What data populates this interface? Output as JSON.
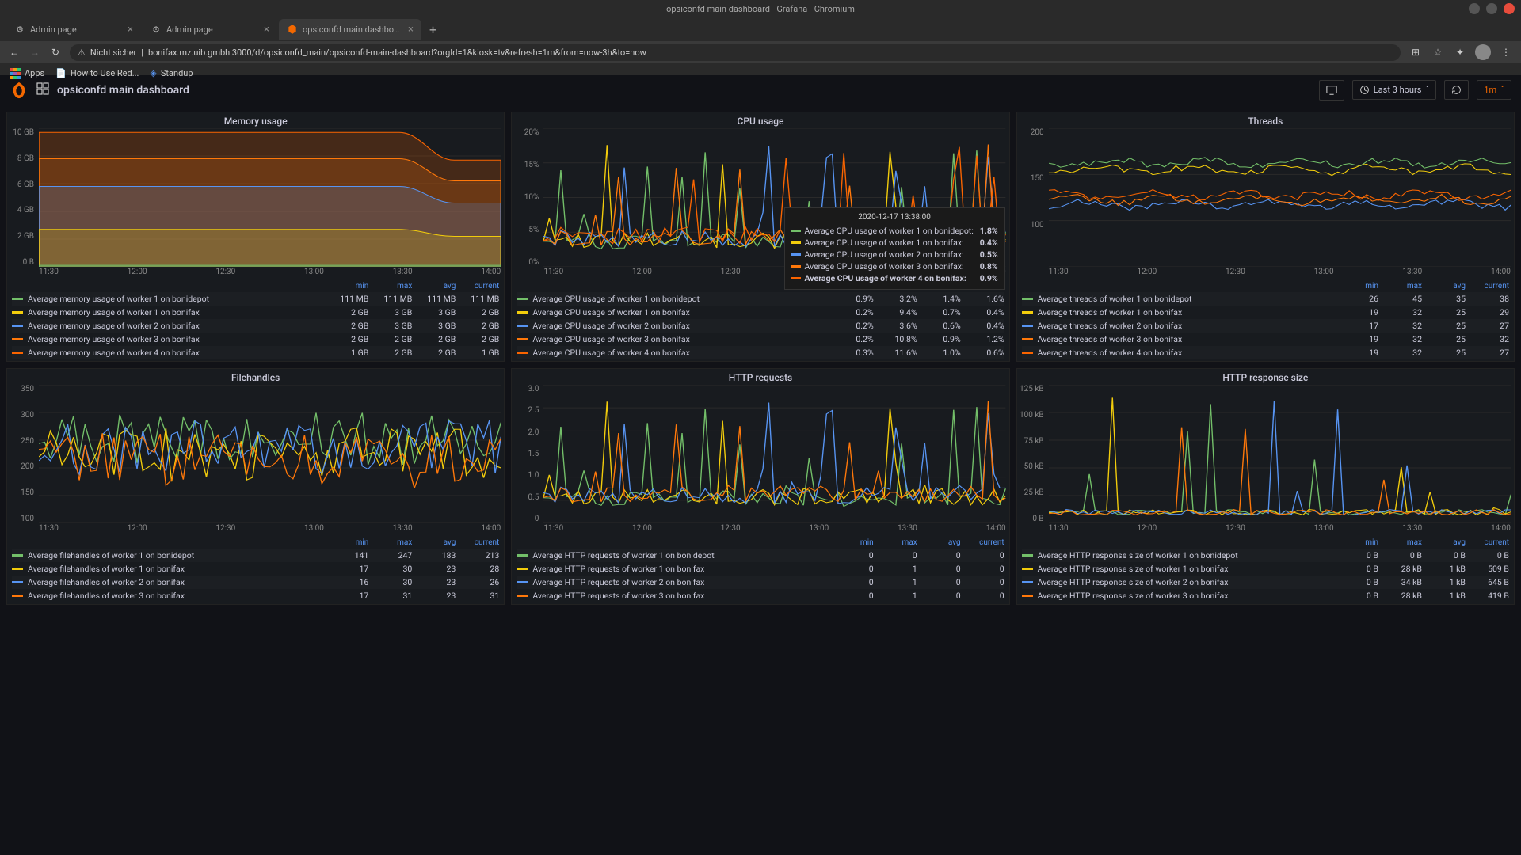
{
  "window": {
    "title": "opsiconfd main dashboard - Grafana - Chromium"
  },
  "browser": {
    "tabs": [
      {
        "label": "Admin page",
        "active": false
      },
      {
        "label": "Admin page",
        "active": false
      },
      {
        "label": "opsiconfd main dashboard",
        "active": true
      }
    ],
    "url_warning": "Nicht sicher",
    "url": "bonifax.mz.uib.gmbh:3000/d/opsiconfd_main/opsiconfd-main-dashboard?orgId=1&kiosk=tv&refresh=1m&from=now-3h&to=now",
    "bookmarks": {
      "apps": "Apps",
      "howto": "How to Use Red...",
      "standup": "Standup"
    }
  },
  "header": {
    "title": "opsiconfd main dashboard",
    "timerange": "Last 3 hours",
    "refresh": "1m"
  },
  "colors": {
    "series": [
      "#73bf69",
      "#f2cc0c",
      "#5794f2",
      "#ff780a",
      "#fa6400"
    ],
    "link": "#5794f2",
    "accent": "#f46800"
  },
  "x_ticks": [
    "11:30",
    "12:00",
    "12:30",
    "13:00",
    "13:30",
    "14:00"
  ],
  "tooltip": {
    "time": "2020-12-17 13:38:00",
    "rows": [
      {
        "label": "Average CPU usage of worker 1 on bonidepot:",
        "val": "1.8%",
        "color": "#73bf69"
      },
      {
        "label": "Average CPU usage of worker 1 on bonifax:",
        "val": "0.4%",
        "color": "#f2cc0c"
      },
      {
        "label": "Average CPU usage of worker 2 on bonifax:",
        "val": "0.5%",
        "color": "#5794f2"
      },
      {
        "label": "Average CPU usage of worker 3 on bonifax:",
        "val": "0.8%",
        "color": "#ff780a"
      },
      {
        "label": "Average CPU usage of worker 4 on bonifax:",
        "val": "0.9%",
        "color": "#fa6400",
        "bold": true
      }
    ]
  },
  "panels": {
    "memory": {
      "title": "Memory usage",
      "y_ticks": [
        "10 GB",
        "8 GB",
        "6 GB",
        "4 GB",
        "2 GB",
        "0 B"
      ],
      "type": "stacked-area",
      "headers": [
        "min",
        "max",
        "avg",
        "current"
      ],
      "rows": [
        {
          "label": "Average memory usage of worker 1 on bonidepot",
          "vals": [
            "111 MB",
            "111 MB",
            "111 MB",
            "111 MB"
          ],
          "color": "#73bf69"
        },
        {
          "label": "Average memory usage of worker 1 on bonifax",
          "vals": [
            "2 GB",
            "3 GB",
            "3 GB",
            "2 GB"
          ],
          "color": "#f2cc0c"
        },
        {
          "label": "Average memory usage of worker 2 on bonifax",
          "vals": [
            "2 GB",
            "3 GB",
            "3 GB",
            "2 GB"
          ],
          "color": "#5794f2"
        },
        {
          "label": "Average memory usage of worker 3 on bonifax",
          "vals": [
            "2 GB",
            "2 GB",
            "2 GB",
            "2 GB"
          ],
          "color": "#ff780a"
        },
        {
          "label": "Average memory usage of worker 4 on bonifax",
          "vals": [
            "1 GB",
            "2 GB",
            "2 GB",
            "1 GB"
          ],
          "color": "#fa6400"
        }
      ]
    },
    "cpu": {
      "title": "CPU usage",
      "y_ticks": [
        "20%",
        "15%",
        "10%",
        "5%",
        "0%"
      ],
      "type": "line-spiky",
      "headers": [
        "min",
        "max",
        "avg",
        "current"
      ],
      "rows": [
        {
          "label": "Average CPU usage of worker 1 on bonidepot",
          "vals": [
            "0.9%",
            "3.2%",
            "1.4%",
            "1.6%"
          ],
          "color": "#73bf69"
        },
        {
          "label": "Average CPU usage of worker 1 on bonifax",
          "vals": [
            "0.2%",
            "9.4%",
            "0.7%",
            "0.4%"
          ],
          "color": "#f2cc0c"
        },
        {
          "label": "Average CPU usage of worker 2 on bonifax",
          "vals": [
            "0.2%",
            "3.6%",
            "0.6%",
            "0.4%"
          ],
          "color": "#5794f2"
        },
        {
          "label": "Average CPU usage of worker 3 on bonifax",
          "vals": [
            "0.2%",
            "10.8%",
            "0.9%",
            "1.2%"
          ],
          "color": "#ff780a"
        },
        {
          "label": "Average CPU usage of worker 4 on bonifax",
          "vals": [
            "0.3%",
            "11.6%",
            "1.0%",
            "0.6%"
          ],
          "color": "#fa6400"
        }
      ]
    },
    "threads": {
      "title": "Threads",
      "y_ticks": [
        "200",
        "150",
        "100",
        ""
      ],
      "type": "line-wavy",
      "headers": [
        "min",
        "max",
        "avg",
        "current"
      ],
      "rows": [
        {
          "label": "Average threads of worker 1 on bonidepot",
          "vals": [
            "26",
            "45",
            "35",
            "38"
          ],
          "color": "#73bf69"
        },
        {
          "label": "Average threads of worker 1 on bonifax",
          "vals": [
            "19",
            "32",
            "25",
            "29"
          ],
          "color": "#f2cc0c"
        },
        {
          "label": "Average threads of worker 2 on bonifax",
          "vals": [
            "17",
            "32",
            "25",
            "27"
          ],
          "color": "#5794f2"
        },
        {
          "label": "Average threads of worker 3 on bonifax",
          "vals": [
            "19",
            "32",
            "25",
            "32"
          ],
          "color": "#ff780a"
        },
        {
          "label": "Average threads of worker 4 on bonifax",
          "vals": [
            "19",
            "32",
            "25",
            "27"
          ],
          "color": "#fa6400"
        }
      ]
    },
    "filehandles": {
      "title": "Filehandles",
      "y_ticks": [
        "350",
        "300",
        "250",
        "200",
        "150",
        "100"
      ],
      "type": "line-noisy",
      "headers": [
        "min",
        "max",
        "avg",
        "current"
      ],
      "rows": [
        {
          "label": "Average filehandles of worker 1 on bonidepot",
          "vals": [
            "141",
            "247",
            "183",
            "213"
          ],
          "color": "#73bf69"
        },
        {
          "label": "Average filehandles of worker 1 on bonifax",
          "vals": [
            "17",
            "30",
            "23",
            "28"
          ],
          "color": "#f2cc0c"
        },
        {
          "label": "Average filehandles of worker 2 on bonifax",
          "vals": [
            "16",
            "30",
            "23",
            "26"
          ],
          "color": "#5794f2"
        },
        {
          "label": "Average filehandles of worker 3 on bonifax",
          "vals": [
            "17",
            "31",
            "23",
            "31"
          ],
          "color": "#ff780a"
        }
      ]
    },
    "http_req": {
      "title": "HTTP requests",
      "y_ticks": [
        "3.0",
        "2.5",
        "2.0",
        "1.5",
        "1.0",
        "0.5",
        "0"
      ],
      "type": "line-spiky",
      "headers": [
        "min",
        "max",
        "avg",
        "current"
      ],
      "rows": [
        {
          "label": "Average HTTP requests of worker 1 on bonidepot",
          "vals": [
            "0",
            "0",
            "0",
            "0"
          ],
          "color": "#73bf69"
        },
        {
          "label": "Average HTTP requests of worker 1 on bonifax",
          "vals": [
            "0",
            "1",
            "0",
            "0"
          ],
          "color": "#f2cc0c"
        },
        {
          "label": "Average HTTP requests of worker 2 on bonifax",
          "vals": [
            "0",
            "1",
            "0",
            "0"
          ],
          "color": "#5794f2"
        },
        {
          "label": "Average HTTP requests of worker 3 on bonifax",
          "vals": [
            "0",
            "1",
            "0",
            "0"
          ],
          "color": "#ff780a"
        }
      ]
    },
    "http_size": {
      "title": "HTTP response size",
      "y_ticks": [
        "125 kB",
        "100 kB",
        "75 kB",
        "50 kB",
        "25 kB",
        "0 B"
      ],
      "type": "line-sparse",
      "headers": [
        "min",
        "max",
        "avg",
        "current"
      ],
      "rows": [
        {
          "label": "Average HTTP response size of worker 1 on bonidepot",
          "vals": [
            "0 B",
            "0 B",
            "0 B",
            "0 B"
          ],
          "color": "#73bf69"
        },
        {
          "label": "Average HTTP response size of worker 1 on bonifax",
          "vals": [
            "0 B",
            "28 kB",
            "1 kB",
            "509 B"
          ],
          "color": "#f2cc0c"
        },
        {
          "label": "Average HTTP response size of worker 2 on bonifax",
          "vals": [
            "0 B",
            "34 kB",
            "1 kB",
            "645 B"
          ],
          "color": "#5794f2"
        },
        {
          "label": "Average HTTP response size of worker 3 on bonifax",
          "vals": [
            "0 B",
            "28 kB",
            "1 kB",
            "419 B"
          ],
          "color": "#ff780a"
        }
      ]
    }
  }
}
